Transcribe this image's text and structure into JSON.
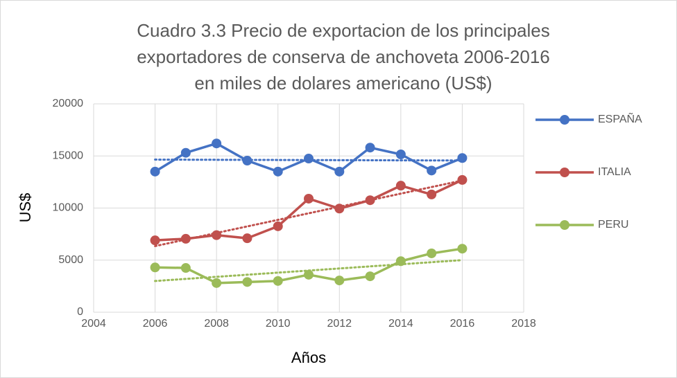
{
  "chart_data": {
    "type": "line",
    "title": [
      "Cuadro 3.3 Precio de exportacion de los principales",
      "exportadores de conserva de anchoveta 2006-2016",
      "en miles de dolares americano (US$)"
    ],
    "x_label": "Años",
    "y_label": "US$",
    "x": [
      2006,
      2007,
      2008,
      2009,
      2010,
      2011,
      2012,
      2013,
      2014,
      2015,
      2016
    ],
    "series": [
      {
        "name": "ESPAÑA",
        "color": "#4472c4",
        "values": [
          13500,
          15300,
          16200,
          14550,
          13500,
          14750,
          13500,
          15800,
          15150,
          13600,
          14800
        ]
      },
      {
        "name": "ITALIA",
        "color": "#c0504d",
        "values": [
          6900,
          7050,
          7400,
          7100,
          8250,
          10900,
          9950,
          10750,
          12150,
          11300,
          12700
        ]
      },
      {
        "name": "PERU",
        "color": "#9bbb59",
        "values": [
          4300,
          4250,
          2800,
          2900,
          3000,
          3600,
          3050,
          3450,
          4900,
          5650,
          6100
        ]
      }
    ],
    "xlim": [
      2004,
      2018
    ],
    "xticks": [
      2004,
      2006,
      2008,
      2010,
      2012,
      2014,
      2016,
      2018
    ],
    "ylim": [
      0,
      20000
    ],
    "yticks": [
      0,
      5000,
      10000,
      15000,
      20000
    ],
    "grid": true,
    "trendline": "linear",
    "legend": "right"
  }
}
